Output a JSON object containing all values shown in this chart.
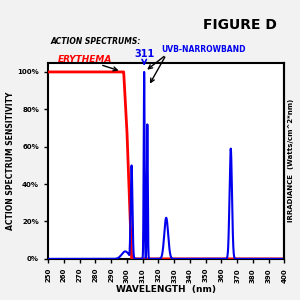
{
  "title": "FIGURE D",
  "xlabel": "WAVELENGTH  (nm)",
  "ylabel_left": "ACTION SPECTRUM SENSITIVITY",
  "ylabel_right": "IRRADIANCE  (Watts/cm^2*nm)",
  "xlim": [
    250,
    400
  ],
  "ylim": [
    0,
    1.05
  ],
  "xticks": [
    250,
    260,
    270,
    280,
    290,
    300,
    310,
    320,
    330,
    340,
    350,
    360,
    370,
    380,
    390,
    400
  ],
  "yticks_labels": [
    "0%",
    "20%",
    "40%",
    "60%",
    "80%",
    "100%"
  ],
  "yticks_values": [
    0,
    0.2,
    0.4,
    0.6,
    0.8,
    1.0
  ],
  "label_action": "ACTION SPECTRUMS:",
  "label_erythema": "ERYTHEMA",
  "label_uvb": "UVB-NARROWBAND",
  "bg_color": "#f2f2f2",
  "plot_bg": "#ffffff",
  "red_color": "#ff0000",
  "blue_color": "#0000ee",
  "black_color": "#000000"
}
